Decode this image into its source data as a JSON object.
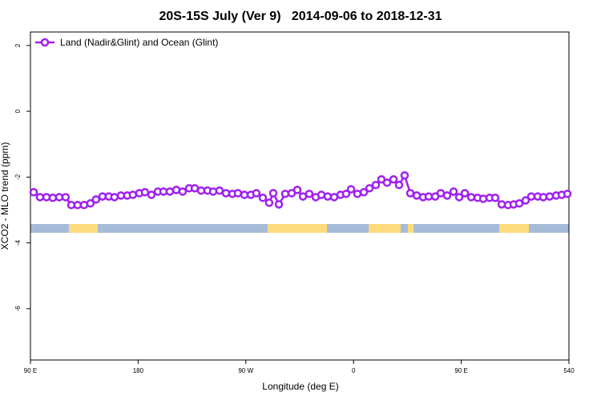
{
  "chart_data": {
    "type": "line",
    "title": "20S-15S July (Ver 9)   2014-09-06 to 2018-12-31",
    "xlabel": "Longitude (deg E)",
    "ylabel": "XCO2 - MLO trend (ppm)",
    "xlim": [
      90,
      540
    ],
    "ylim": [
      -7.56,
      2.41
    ],
    "xticks": [
      {
        "value": 90,
        "label": "90 E"
      },
      180,
      {
        "value": 270,
        "label": "90 W"
      },
      {
        "value": 360,
        "label": "0"
      },
      {
        "value": 450,
        "label": "90 E"
      },
      540
    ],
    "yticks": [
      2,
      0,
      -2,
      -4,
      -6
    ],
    "legend": "upper left",
    "series": [
      {
        "name": "Land (Nadir&Glint) and Ocean (Glint)",
        "color": "#a020f0",
        "x": [
          92.7,
          98,
          103.4,
          108.7,
          114.1,
          119.4,
          124.1,
          129.4,
          134.8,
          140.1,
          144.8,
          150.2,
          155.5,
          160.2,
          165.6,
          170.9,
          175.6,
          181,
          185.7,
          191.1,
          196.5,
          201.2,
          206.5,
          211.9,
          217.2,
          222.6,
          227.3,
          232.6,
          238,
          242.7,
          248,
          253.4,
          258.8,
          263.4,
          268.8,
          274.2,
          278.8,
          284.2,
          289.5,
          292.9,
          297.6,
          302.9,
          308.3,
          313,
          317.7,
          323,
          328.4,
          333.1,
          338.4,
          343.8,
          349.1,
          353.8,
          357.9,
          363.2,
          368.6,
          373.3,
          378.6,
          383.3,
          388,
          393.4,
          398,
          402.7,
          407.4,
          412.8,
          418.1,
          422.8,
          428.2,
          432.9,
          438.2,
          443.6,
          448.3,
          453,
          458.3,
          463.7,
          468.4,
          473.7,
          478.4,
          483.8,
          489.1,
          493.8,
          498.5,
          503.8,
          508.5,
          513.9,
          518.6,
          523.9,
          529.3,
          534,
          538.7
        ],
        "values": [
          -2.46,
          -2.61,
          -2.61,
          -2.63,
          -2.61,
          -2.61,
          -2.85,
          -2.85,
          -2.85,
          -2.8,
          -2.68,
          -2.59,
          -2.59,
          -2.61,
          -2.56,
          -2.56,
          -2.54,
          -2.49,
          -2.46,
          -2.54,
          -2.44,
          -2.44,
          -2.44,
          -2.39,
          -2.44,
          -2.34,
          -2.34,
          -2.41,
          -2.41,
          -2.44,
          -2.41,
          -2.49,
          -2.51,
          -2.49,
          -2.54,
          -2.54,
          -2.49,
          -2.63,
          -2.78,
          -2.49,
          -2.83,
          -2.51,
          -2.49,
          -2.39,
          -2.59,
          -2.51,
          -2.61,
          -2.54,
          -2.59,
          -2.61,
          -2.54,
          -2.51,
          -2.37,
          -2.51,
          -2.46,
          -2.34,
          -2.24,
          -2.07,
          -2.17,
          -2.07,
          -2.24,
          -1.95,
          -2.49,
          -2.56,
          -2.61,
          -2.59,
          -2.59,
          -2.49,
          -2.56,
          -2.44,
          -2.61,
          -2.49,
          -2.61,
          -2.63,
          -2.66,
          -2.63,
          -2.63,
          -2.83,
          -2.85,
          -2.83,
          -2.8,
          -2.71,
          -2.59,
          -2.59,
          -2.61,
          -2.59,
          -2.56,
          -2.54,
          -2.51
        ]
      }
    ]
  }
}
